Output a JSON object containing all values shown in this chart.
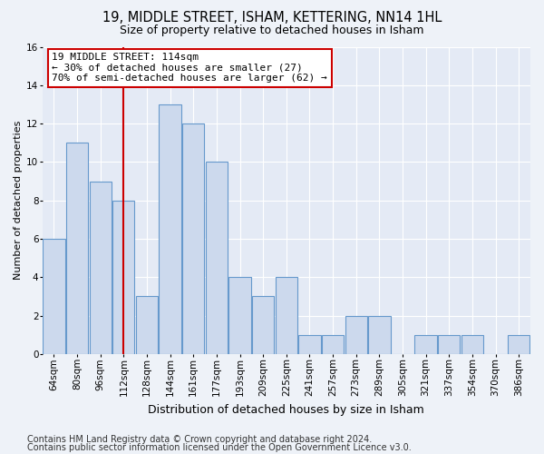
{
  "title": "19, MIDDLE STREET, ISHAM, KETTERING, NN14 1HL",
  "subtitle": "Size of property relative to detached houses in Isham",
  "xlabel": "Distribution of detached houses by size in Isham",
  "ylabel": "Number of detached properties",
  "categories": [
    "64sqm",
    "80sqm",
    "96sqm",
    "112sqm",
    "128sqm",
    "144sqm",
    "161sqm",
    "177sqm",
    "193sqm",
    "209sqm",
    "225sqm",
    "241sqm",
    "257sqm",
    "273sqm",
    "289sqm",
    "305sqm",
    "321sqm",
    "337sqm",
    "354sqm",
    "370sqm",
    "386sqm"
  ],
  "values": [
    6,
    11,
    9,
    8,
    3,
    13,
    12,
    10,
    4,
    3,
    4,
    1,
    1,
    2,
    2,
    0,
    1,
    1,
    1,
    0,
    1
  ],
  "bar_color": "#ccd9ed",
  "bar_edge_color": "#6699cc",
  "highlight_bar_index": 3,
  "highlight_line_color": "#cc0000",
  "annotation_text": "19 MIDDLE STREET: 114sqm\n← 30% of detached houses are smaller (27)\n70% of semi-detached houses are larger (62) →",
  "annotation_box_color": "#ffffff",
  "annotation_box_edge_color": "#cc0000",
  "ylim": [
    0,
    16
  ],
  "yticks": [
    0,
    2,
    4,
    6,
    8,
    10,
    12,
    14,
    16
  ],
  "footer_line1": "Contains HM Land Registry data © Crown copyright and database right 2024.",
  "footer_line2": "Contains public sector information licensed under the Open Government Licence v3.0.",
  "background_color": "#eef2f8",
  "plot_background_color": "#e4eaf5",
  "grid_color": "#ffffff",
  "title_fontsize": 10.5,
  "subtitle_fontsize": 9,
  "xlabel_fontsize": 9,
  "ylabel_fontsize": 8,
  "tick_fontsize": 7.5,
  "annotation_fontsize": 8,
  "footer_fontsize": 7
}
